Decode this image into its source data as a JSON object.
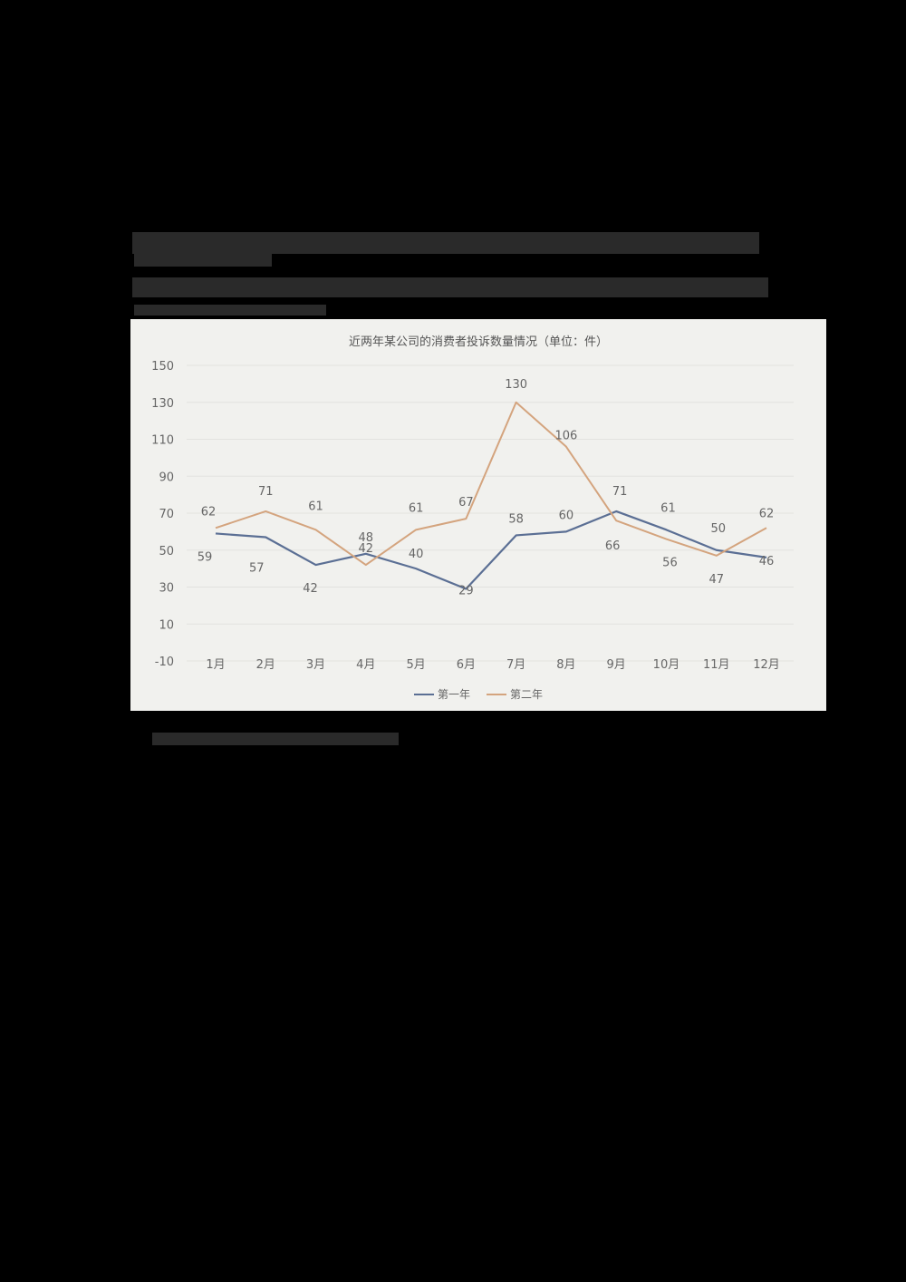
{
  "document": {
    "header_text_visible": false,
    "footer_text_visible": false
  },
  "colors": {
    "page_background": "#000000",
    "chart_background": "#f1f1ee",
    "series_year1": "#5b6f94",
    "series_year2": "#d4a47e",
    "gridline": "#e2e2df",
    "text": "#666666"
  },
  "chart_data": {
    "type": "line",
    "title": "近两年某公司的消费者投诉数量情况（单位：件）",
    "xlabel": "",
    "ylabel": "",
    "categories": [
      "1月",
      "2月",
      "3月",
      "4月",
      "5月",
      "6月",
      "7月",
      "8月",
      "9月",
      "10月",
      "11月",
      "12月"
    ],
    "series": [
      {
        "name": "第一年",
        "color": "#5b6f94",
        "values": [
          59,
          57,
          42,
          48,
          40,
          29,
          58,
          60,
          71,
          61,
          50,
          46
        ]
      },
      {
        "name": "第二年",
        "color": "#d4a47e",
        "values": [
          62,
          71,
          61,
          42,
          61,
          67,
          130,
          106,
          66,
          56,
          47,
          62
        ]
      }
    ],
    "ylim": [
      -10,
      150
    ],
    "yticks": [
      150,
      130,
      110,
      90,
      70,
      50,
      30,
      10,
      -10
    ],
    "grid": true,
    "legend_position": "bottom",
    "data_labels": true
  }
}
